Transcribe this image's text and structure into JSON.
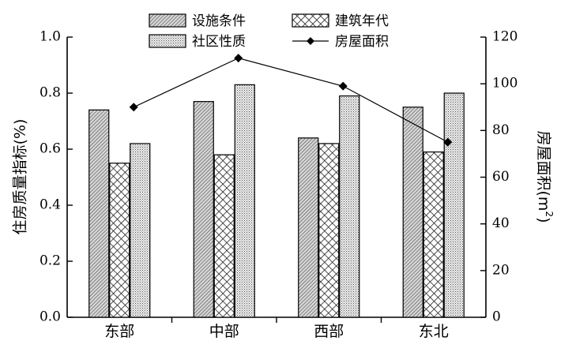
{
  "chart_data": {
    "type": "bar",
    "categories": [
      "东部",
      "中部",
      "西部",
      "东北"
    ],
    "series": [
      {
        "name": "设施条件",
        "values": [
          0.74,
          0.77,
          0.64,
          0.75
        ],
        "axis": "left",
        "pattern": "diagonal"
      },
      {
        "name": "建筑年代",
        "values": [
          0.55,
          0.58,
          0.62,
          0.59
        ],
        "axis": "left",
        "pattern": "crosshatch"
      },
      {
        "name": "社区性质",
        "values": [
          0.62,
          0.83,
          0.79,
          0.8
        ],
        "axis": "left",
        "pattern": "dots"
      },
      {
        "name": "房屋面积",
        "values": [
          90,
          111,
          99,
          75
        ],
        "axis": "right",
        "type": "line",
        "marker": "diamond"
      }
    ],
    "ylabel_left": "住房质量指标(%)",
    "ylabel_right_main": "房屋面积(m",
    "ylabel_right_sup": "2",
    "ylabel_right_close": ")",
    "ylim_left": [
      0,
      1.0
    ],
    "ylim_right": [
      0,
      120
    ],
    "yticks_left": [
      "0.0",
      "0.2",
      "0.4",
      "0.6",
      "0.8",
      "1.0"
    ],
    "yticks_right": [
      "0",
      "20",
      "40",
      "60",
      "80",
      "100",
      "120"
    ],
    "legend_position": "top-center",
    "grid": false
  }
}
